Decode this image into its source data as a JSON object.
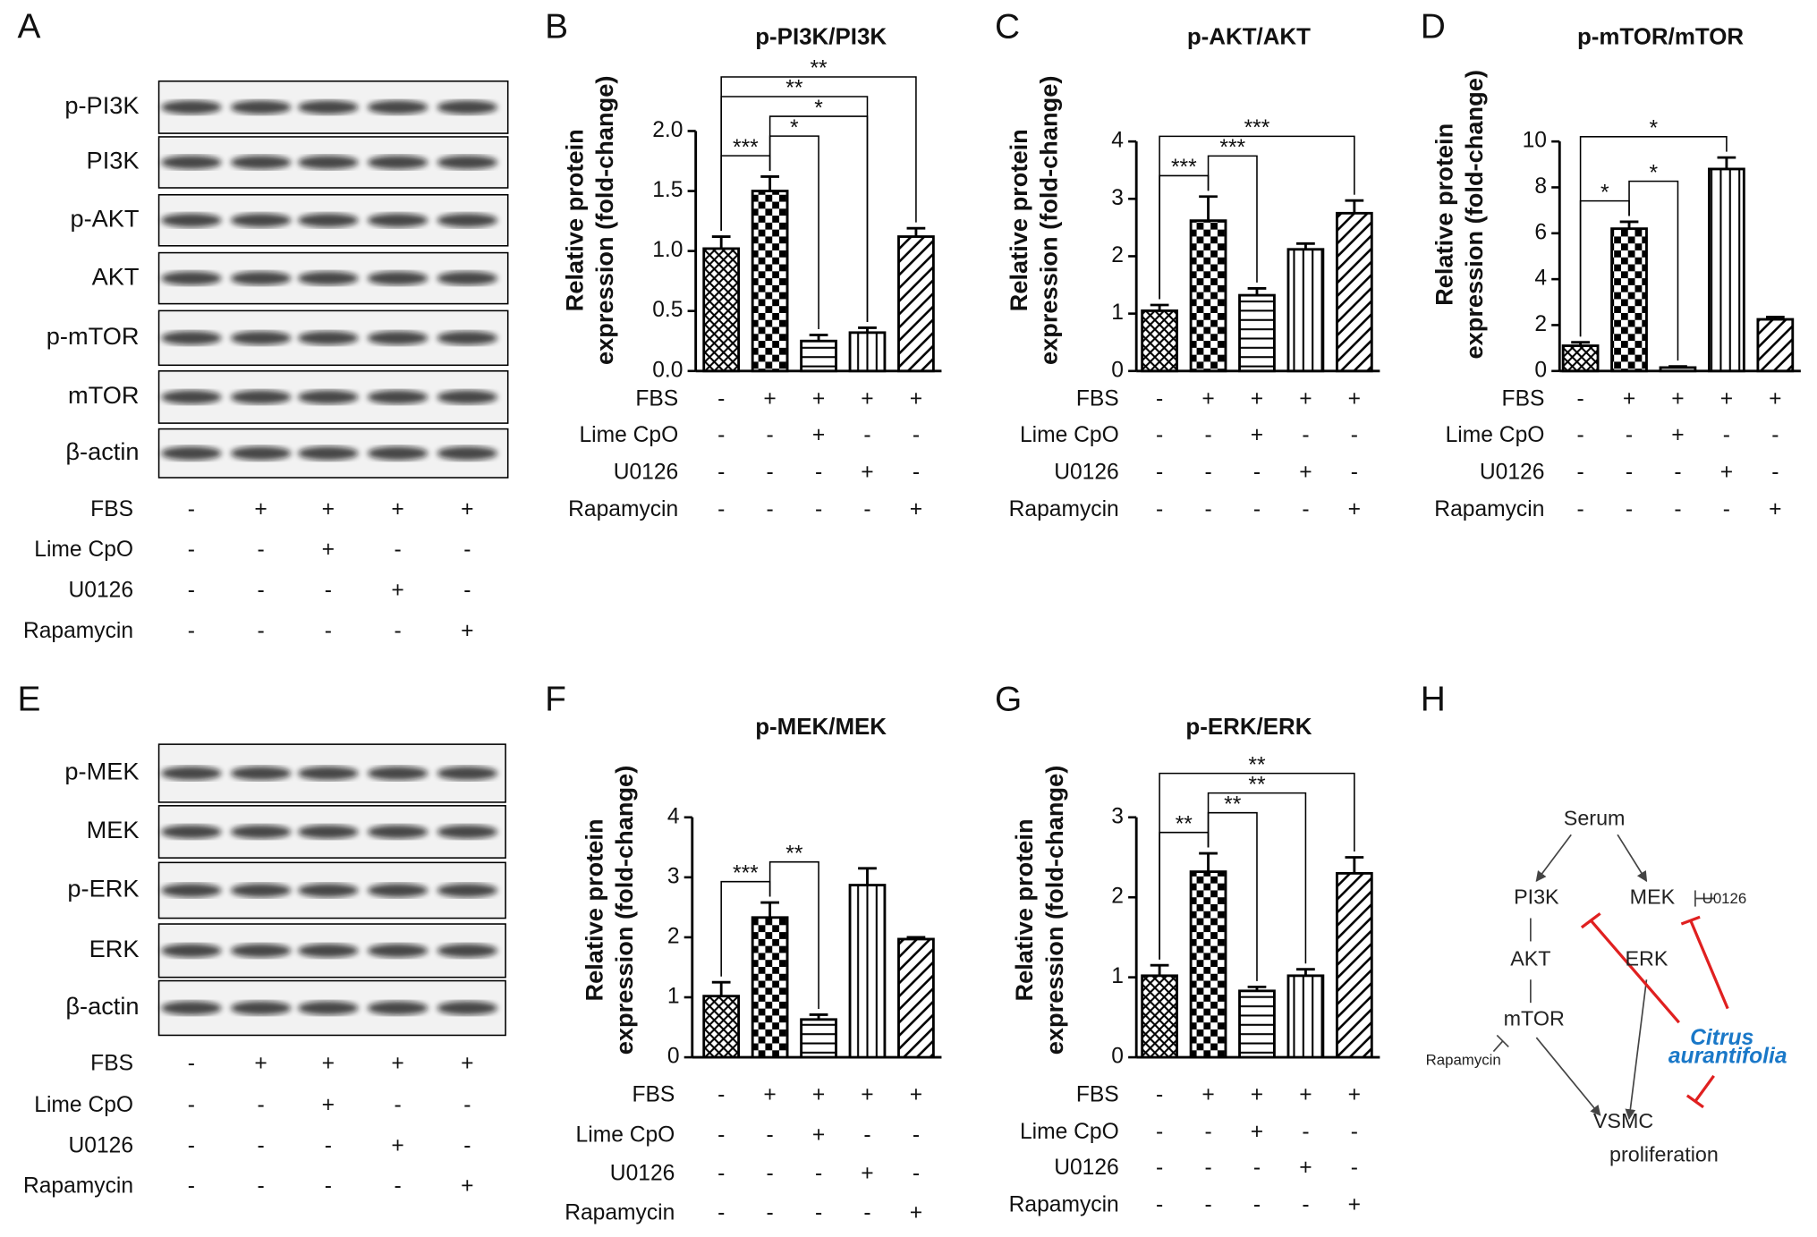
{
  "blots": [
    {
      "panel": "A",
      "rows": [
        "p-PI3K",
        "PI3K",
        "p-AKT",
        "AKT",
        "p-mTOR",
        "mTOR",
        "β-actin"
      ],
      "treatments": [
        {
          "name": "FBS",
          "signs": [
            "-",
            "+",
            "+",
            "+",
            "+"
          ]
        },
        {
          "name": "Lime CpO",
          "signs": [
            "-",
            "-",
            "+",
            "-",
            "-"
          ]
        },
        {
          "name": "U0126",
          "signs": [
            "-",
            "-",
            "-",
            "+",
            "-"
          ]
        },
        {
          "name": "Rapamycin",
          "signs": [
            "-",
            "-",
            "-",
            "-",
            "+"
          ]
        }
      ]
    },
    {
      "panel": "E",
      "rows": [
        "p-MEK",
        "MEK",
        "p-ERK",
        "ERK",
        "β-actin"
      ],
      "treatments": [
        {
          "name": "FBS",
          "signs": [
            "-",
            "+",
            "+",
            "+",
            "+"
          ]
        },
        {
          "name": "Lime CpO",
          "signs": [
            "-",
            "-",
            "+",
            "-",
            "-"
          ]
        },
        {
          "name": "U0126",
          "signs": [
            "-",
            "-",
            "-",
            "+",
            "-"
          ]
        },
        {
          "name": "Rapamycin",
          "signs": [
            "-",
            "-",
            "-",
            "-",
            "+"
          ]
        }
      ]
    }
  ],
  "chart_data": [
    {
      "type": "bar",
      "panel": "B",
      "title": "p-PI3K/PI3K",
      "ylabel": [
        "Relative protein",
        "expression (fold-change)"
      ],
      "values": [
        1.02,
        1.5,
        0.25,
        0.32,
        1.12
      ],
      "errors": [
        0.1,
        0.12,
        0.05,
        0.04,
        0.07
      ],
      "ylim": [
        0,
        2.0
      ],
      "yticks": [
        {
          "value": 0,
          "label": "0.0"
        },
        {
          "value": 0.5,
          "label": "0.5"
        },
        {
          "value": 1,
          "label": "1.0"
        },
        {
          "value": 1.5,
          "label": "1.5"
        },
        {
          "value": 2,
          "label": "2.0"
        }
      ],
      "significance": [
        {
          "label": "***",
          "bars": [
            0,
            1
          ]
        },
        {
          "label": "*",
          "bars": [
            1,
            2
          ]
        },
        {
          "label": "*",
          "bars": [
            1,
            3
          ]
        },
        {
          "label": "**",
          "bars": [
            0,
            3
          ]
        },
        {
          "label": "**",
          "bars": [
            0,
            4
          ]
        }
      ],
      "treatments": [
        {
          "name": "FBS",
          "signs": [
            "-",
            "+",
            "+",
            "+",
            "+"
          ]
        },
        {
          "name": "Lime CpO",
          "signs": [
            "-",
            "-",
            "+",
            "-",
            "-"
          ]
        },
        {
          "name": "U0126",
          "signs": [
            "-",
            "-",
            "-",
            "+",
            "-"
          ]
        },
        {
          "name": "Rapamycin",
          "signs": [
            "-",
            "-",
            "-",
            "-",
            "+"
          ]
        }
      ]
    },
    {
      "type": "bar",
      "panel": "C",
      "title": "p-AKT/AKT",
      "ylabel": [
        "Relative protein",
        "expression (fold-change)"
      ],
      "values": [
        1.05,
        2.62,
        1.32,
        2.12,
        2.75
      ],
      "errors": [
        0.1,
        0.42,
        0.12,
        0.1,
        0.22
      ],
      "ylim": [
        0,
        4
      ],
      "yticks": [
        0,
        1,
        2,
        3,
        4
      ],
      "significance": [
        {
          "label": "***",
          "bars": [
            0,
            1
          ]
        },
        {
          "label": "***",
          "bars": [
            1,
            2
          ]
        },
        {
          "label": "***",
          "bars": [
            0,
            4
          ]
        }
      ],
      "treatments": [
        {
          "name": "FBS",
          "signs": [
            "-",
            "+",
            "+",
            "+",
            "+"
          ]
        },
        {
          "name": "Lime CpO",
          "signs": [
            "-",
            "-",
            "+",
            "-",
            "-"
          ]
        },
        {
          "name": "U0126",
          "signs": [
            "-",
            "-",
            "-",
            "+",
            "-"
          ]
        },
        {
          "name": "Rapamycin",
          "signs": [
            "-",
            "-",
            "-",
            "-",
            "+"
          ]
        }
      ]
    },
    {
      "type": "bar",
      "panel": "D",
      "title": "p-mTOR/mTOR",
      "ylabel": [
        "Relative protein",
        "expression (fold-change)"
      ],
      "values": [
        1.1,
        6.2,
        0.15,
        8.8,
        2.25
      ],
      "errors": [
        0.15,
        0.3,
        0.05,
        0.5,
        0.1
      ],
      "ylim": [
        0,
        10
      ],
      "yticks": [
        0,
        2,
        4,
        6,
        8,
        10
      ],
      "significance": [
        {
          "label": "*",
          "bars": [
            0,
            1
          ]
        },
        {
          "label": "*",
          "bars": [
            1,
            2
          ]
        },
        {
          "label": "*",
          "bars": [
            0,
            3
          ]
        }
      ],
      "treatments": [
        {
          "name": "FBS",
          "signs": [
            "-",
            "+",
            "+",
            "+",
            "+"
          ]
        },
        {
          "name": "Lime CpO",
          "signs": [
            "-",
            "-",
            "+",
            "-",
            "-"
          ]
        },
        {
          "name": "U0126",
          "signs": [
            "-",
            "-",
            "-",
            "+",
            "-"
          ]
        },
        {
          "name": "Rapamycin",
          "signs": [
            "-",
            "-",
            "-",
            "-",
            "+"
          ]
        }
      ]
    },
    {
      "type": "bar",
      "panel": "F",
      "title": "p-MEK/MEK",
      "ylabel": [
        "Relative protein",
        "expression (fold-change)"
      ],
      "values": [
        1.02,
        2.33,
        0.63,
        2.87,
        1.97
      ],
      "errors": [
        0.23,
        0.25,
        0.08,
        0.28,
        0.03
      ],
      "ylim": [
        0,
        4
      ],
      "yticks": [
        0,
        1,
        2,
        3,
        4
      ],
      "significance": [
        {
          "label": "***",
          "bars": [
            0,
            1
          ]
        },
        {
          "label": "**",
          "bars": [
            1,
            2
          ]
        }
      ],
      "treatments": [
        {
          "name": "FBS",
          "signs": [
            "-",
            "+",
            "+",
            "+",
            "+"
          ]
        },
        {
          "name": "Lime CpO",
          "signs": [
            "-",
            "-",
            "+",
            "-",
            "-"
          ]
        },
        {
          "name": "U0126",
          "signs": [
            "-",
            "-",
            "-",
            "+",
            "-"
          ]
        },
        {
          "name": "Rapamycin",
          "signs": [
            "-",
            "-",
            "-",
            "-",
            "+"
          ]
        }
      ]
    },
    {
      "type": "bar",
      "panel": "G",
      "title": "p-ERK/ERK",
      "ylabel": [
        "Relative protein",
        "expression (fold-change)"
      ],
      "values": [
        1.02,
        2.32,
        0.83,
        1.02,
        2.3
      ],
      "errors": [
        0.13,
        0.23,
        0.05,
        0.08,
        0.2
      ],
      "ylim": [
        0,
        3
      ],
      "yticks": [
        0,
        1,
        2,
        3
      ],
      "significance": [
        {
          "label": "**",
          "bars": [
            0,
            1
          ]
        },
        {
          "label": "**",
          "bars": [
            1,
            2
          ]
        },
        {
          "label": "**",
          "bars": [
            1,
            3
          ]
        },
        {
          "label": "**",
          "bars": [
            0,
            4
          ]
        }
      ],
      "treatments": [
        {
          "name": "FBS",
          "signs": [
            "-",
            "+",
            "+",
            "+",
            "+"
          ]
        },
        {
          "name": "Lime CpO",
          "signs": [
            "-",
            "-",
            "+",
            "-",
            "-"
          ]
        },
        {
          "name": "U0126",
          "signs": [
            "-",
            "-",
            "-",
            "+",
            "-"
          ]
        },
        {
          "name": "Rapamycin",
          "signs": [
            "-",
            "-",
            "-",
            "-",
            "+"
          ]
        }
      ]
    }
  ],
  "diagram": {
    "panel": "H",
    "serum": "Serum",
    "pi3k": "PI3K",
    "mek": "MEK",
    "u0126": "U0126",
    "akt": "AKT",
    "erk": "ERK",
    "mtor": "mTOR",
    "rapamycin": "Rapamycin",
    "inhibitor": [
      "Citrus",
      "aurantifolia"
    ],
    "outcome": [
      "VSMC",
      "proliferation"
    ]
  }
}
